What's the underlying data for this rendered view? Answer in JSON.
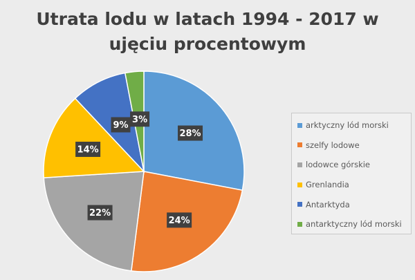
{
  "chart_data": {
    "type": "pie",
    "title": "Utrata lodu w latach 1994 - 2017 w ujęciu procentowym",
    "title_lines": [
      "Utrata lodu w latach 1994 - 2017 w",
      "ujęciu procentowym"
    ],
    "legend_position": "right",
    "slices": [
      {
        "label": "arktyczny lód morski",
        "value": 28,
        "display": "28%",
        "color": "#5b9bd5"
      },
      {
        "label": "szelfy lodowe",
        "value": 24,
        "display": "24%",
        "color": "#ed7d31"
      },
      {
        "label": "lodowce górskie",
        "value": 22,
        "display": "22%",
        "color": "#a5a5a5"
      },
      {
        "label": "Grenlandia",
        "value": 14,
        "display": "14%",
        "color": "#ffc000"
      },
      {
        "label": "Antarktyda",
        "value": 9,
        "display": "9%",
        "color": "#4472c4"
      },
      {
        "label": "antarktyczny lód morski",
        "value": 3,
        "display": "3%",
        "color": "#70ad47"
      }
    ],
    "label_box_color": "#404040"
  }
}
